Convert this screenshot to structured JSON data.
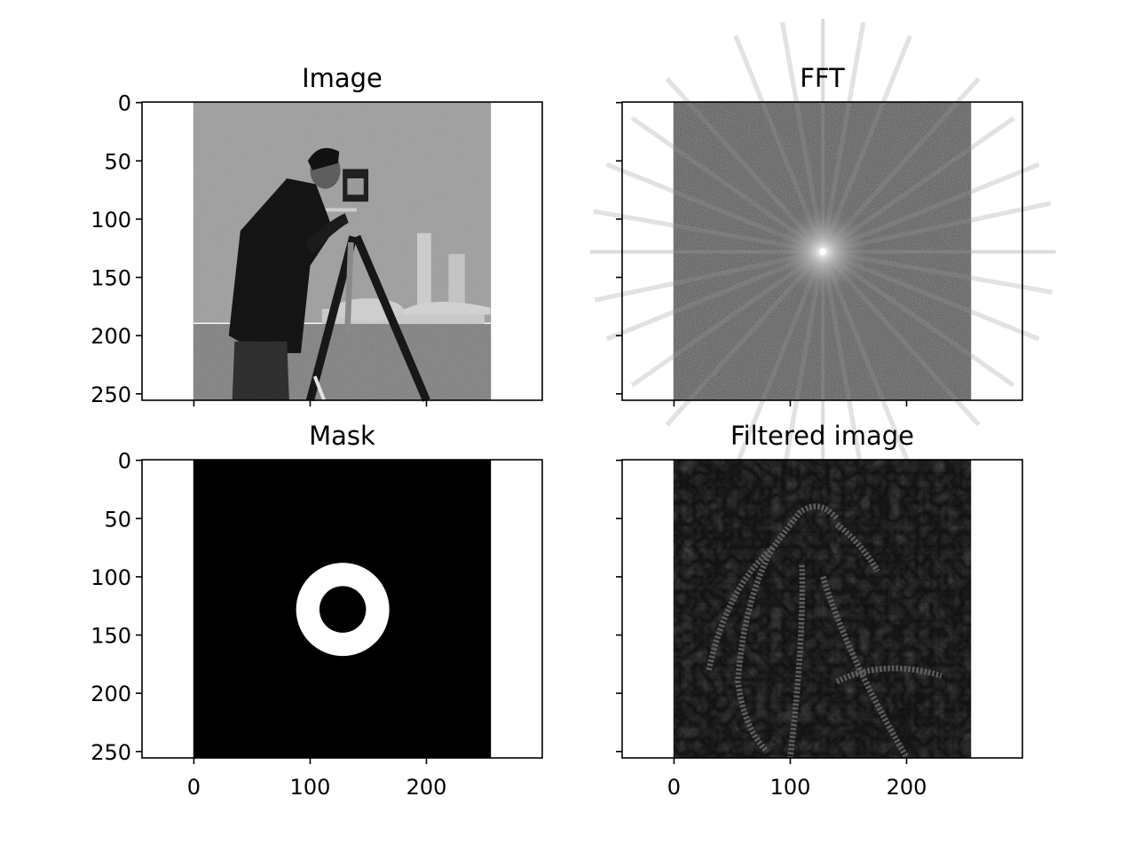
{
  "chart_data": [
    {
      "type": "heatmap",
      "title": "Image",
      "colormap": "gray",
      "image_size": [
        256,
        256
      ],
      "xlim": [
        -44.6,
        299.6
      ],
      "ylim": [
        255.5,
        -0.5
      ],
      "xticks": [
        0,
        100,
        200
      ],
      "yticks": [
        0,
        50,
        100,
        150,
        200,
        250
      ],
      "show_xtick_labels": false,
      "show_ytick_labels": true,
      "content": "cameraman"
    },
    {
      "type": "heatmap",
      "title": "FFT",
      "colormap": "gray",
      "image_size": [
        256,
        256
      ],
      "xlim": [
        -44.6,
        299.6
      ],
      "ylim": [
        255.5,
        -0.5
      ],
      "xticks": [
        0,
        100,
        200
      ],
      "yticks": [
        0,
        50,
        100,
        150,
        200,
        250
      ],
      "show_xtick_labels": false,
      "show_ytick_labels": false,
      "content": "fft-magnitude"
    },
    {
      "type": "heatmap",
      "title": "Mask",
      "colormap": "gray",
      "image_size": [
        256,
        256
      ],
      "xlim": [
        -44.6,
        299.6
      ],
      "ylim": [
        255.5,
        -0.5
      ],
      "xticks": [
        0,
        100,
        200
      ],
      "yticks": [
        0,
        50,
        100,
        150,
        200,
        250
      ],
      "show_xtick_labels": true,
      "show_ytick_labels": true,
      "content": "ring-mask",
      "ring": {
        "center": [
          128,
          128
        ],
        "inner_radius": 20,
        "outer_radius": 40
      }
    },
    {
      "type": "heatmap",
      "title": "Filtered image",
      "colormap": "gray",
      "image_size": [
        256,
        256
      ],
      "xlim": [
        -44.6,
        299.6
      ],
      "ylim": [
        255.5,
        -0.5
      ],
      "xticks": [
        0,
        100,
        200
      ],
      "yticks": [
        0,
        50,
        100,
        150,
        200,
        250
      ],
      "show_xtick_labels": true,
      "show_ytick_labels": false,
      "content": "band-pass-filtered"
    }
  ]
}
